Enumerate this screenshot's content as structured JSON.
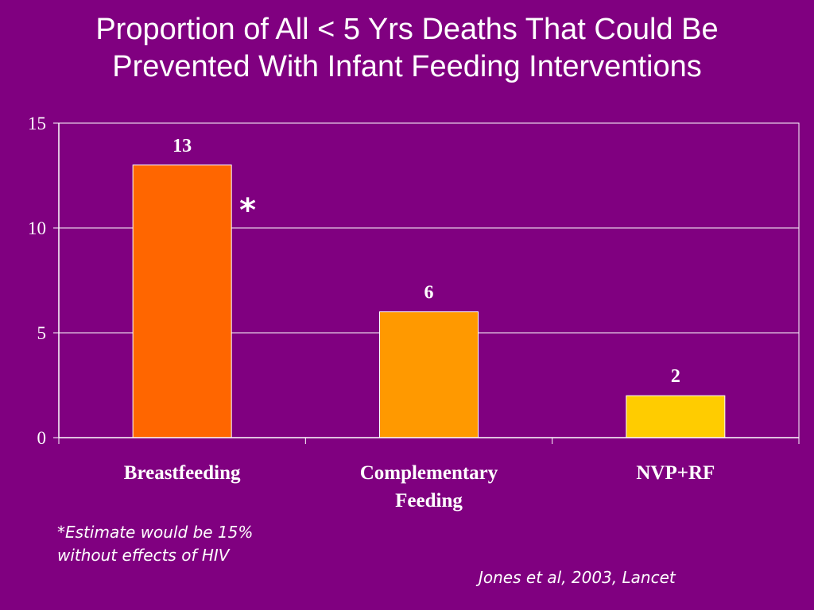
{
  "slide": {
    "title_line1": "Proportion of All < 5 Yrs Deaths That Could Be",
    "title_line2": "Prevented With Infant Feeding Interventions",
    "footnote_line1": "*Estimate would be 15%",
    "footnote_line2": "without effects of HIV",
    "source": "Jones et al, 2003, Lancet"
  },
  "colors": {
    "background": "#800080",
    "breastfeeding_bar": "#FF6600",
    "complementary_bar": "#FF9900",
    "nvp_bar": "#FFCC00",
    "text": "#FFFFFF",
    "gridlines": "#FFFFFF"
  },
  "chart_data": {
    "type": "bar",
    "title": "",
    "xlabel": "",
    "ylabel": "",
    "categories": [
      [
        "Breastfeeding"
      ],
      [
        "Complementary",
        "Feeding"
      ],
      [
        "NVP+RF"
      ]
    ],
    "values": [
      13,
      6,
      2
    ],
    "data_labels": [
      "13",
      "6",
      "2"
    ],
    "annotations": [
      {
        "category_index": 0,
        "text": "*"
      }
    ],
    "ylim": [
      0,
      15
    ],
    "yticks": [
      0,
      5,
      10,
      15
    ],
    "grid": true,
    "legend": "none"
  }
}
